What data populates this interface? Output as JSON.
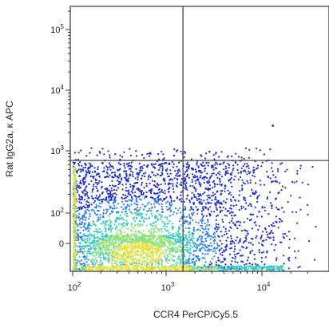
{
  "chart_data": {
    "type": "scatter",
    "subtype": "flow-cytometry-density-dot-plot",
    "xlabel": "CCR4 PerCP/Cy5.5",
    "ylabel": "Rat IgG2a, κ APC",
    "x_scale": "biexponential",
    "y_scale": "biexponential",
    "xlim": [
      100,
      40000
    ],
    "ylim": [
      -50,
      400000
    ],
    "x_ticks": [
      {
        "value": 100,
        "label": "10",
        "exp": "2"
      },
      {
        "value": 1000,
        "label": "10",
        "exp": "3"
      },
      {
        "value": 10000,
        "label": "10",
        "exp": "4"
      }
    ],
    "y_ticks": [
      {
        "value": 0,
        "label": "0",
        "exp": ""
      },
      {
        "value": 100,
        "label": "10",
        "exp": "2"
      },
      {
        "value": 1000,
        "label": "10",
        "exp": "3"
      },
      {
        "value": 10000,
        "label": "10",
        "exp": "4"
      },
      {
        "value": 100000,
        "label": "10",
        "exp": "5"
      }
    ],
    "quadrant_gate": {
      "x": 1500,
      "y": 700
    },
    "density_colors": [
      "#1a2cc8",
      "#2a7ee8",
      "#38c9c0",
      "#8fe27a",
      "#f2e23a"
    ],
    "population": {
      "x_center": 500,
      "x_range": [
        100,
        40000
      ],
      "y_center": 0,
      "y_range": [
        -50,
        650
      ],
      "outliers": [
        {
          "x": 13000,
          "y": 2600
        }
      ]
    },
    "grid": false,
    "legend": "none"
  }
}
